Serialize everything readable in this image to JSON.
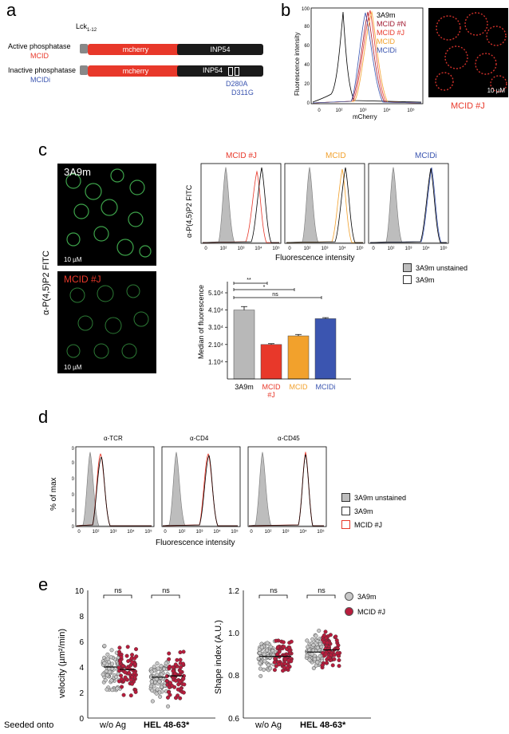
{
  "panels": {
    "a": "a",
    "b": "b",
    "c": "c",
    "d": "d",
    "e": "e"
  },
  "panel_a": {
    "construct_label": "Lck",
    "construct_sub": "1-12",
    "active": {
      "title": "Active phosphatase",
      "name": "MCID",
      "fp": "mcherry",
      "domain": "INP54"
    },
    "inactive": {
      "title": "Inactive phosphatase",
      "name": "MCIDi",
      "fp": "mcherry",
      "domain": "INP54",
      "mut1": "D280A",
      "mut2": "D311G"
    }
  },
  "panel_b": {
    "ylabel": "Fluorescence intensity",
    "xlabel": "mCherry",
    "yticks": [
      "0",
      "20",
      "40",
      "60",
      "80",
      "100"
    ],
    "xticks": [
      "0",
      "10²",
      "10³",
      "10⁴",
      "10⁵"
    ],
    "legend": [
      {
        "name": "3A9m",
        "color": "#000000"
      },
      {
        "name": "MCID #N",
        "color": "#a0182f"
      },
      {
        "name": "MCID #J",
        "color": "#e8382a"
      },
      {
        "name": "MCID",
        "color": "#f2a12c"
      },
      {
        "name": "MCIDi",
        "color": "#3b55b0"
      }
    ],
    "scale": "10 µM",
    "image_label": "MCID #J"
  },
  "panel_c": {
    "img1_label": "3A9m",
    "img2_label": "MCID #J",
    "scale": "10 µM",
    "ylabel": "α-P(4,5)P2 FITC",
    "hist_titles": [
      {
        "t": "MCID #J",
        "c": "#e8382a"
      },
      {
        "t": "MCID",
        "c": "#f2a12c"
      },
      {
        "t": "MCIDi",
        "c": "#3b55b0"
      }
    ],
    "hist_ylabel": "α-P(4,5)P2 FITC",
    "hist_xlabel": "Fluorescence intensity",
    "hist_xticks": [
      "0",
      "10²",
      "10³",
      "10⁴",
      "10⁵"
    ],
    "legend": [
      "3A9m unstained",
      "3A9m"
    ],
    "bar_ylabel": "Median of fluorescence",
    "sig": [
      "**",
      "*",
      "ns"
    ]
  },
  "panel_d": {
    "titles": [
      "α-TCR",
      "α-CD4",
      "α-CD45"
    ],
    "ylabel": "% of max",
    "xlabel": "Fluorescence intensity",
    "yticks": [
      "0",
      "20",
      "40",
      "60",
      "80",
      "100"
    ],
    "xticks": [
      "0",
      "10²",
      "10³",
      "10⁴",
      "10⁵"
    ],
    "legend": [
      "3A9m unstained",
      "3A9m",
      "MCID #J"
    ]
  },
  "panel_e": {
    "seeded": "Seeded onto",
    "groups": [
      "w/o Ag",
      "HEL 48-63*"
    ],
    "groups_right": [
      "w/o Ag",
      "HEL 48-63*"
    ],
    "ylabel_left": "velocity (µm²/min)",
    "ylabel_right": "Shape index (A.U.)",
    "yticks_left": [
      "0",
      "2",
      "4",
      "6",
      "8",
      "10"
    ],
    "yticks_right": [
      "0.6",
      "0.8",
      "1.0",
      "1.2"
    ],
    "ns": "ns",
    "legend": [
      "3A9m",
      "MCID #J"
    ]
  },
  "chart_data": [
    {
      "type": "bar",
      "title": "",
      "ylabel": "Median of fluorescence",
      "categories": [
        "3A9m",
        "MCID #J",
        "MCID",
        "MCIDi"
      ],
      "values": [
        40000,
        20000,
        25000,
        35000
      ],
      "errors": [
        2000,
        500,
        800,
        600
      ],
      "colors": [
        "#b8b8b8",
        "#e8382a",
        "#f2a12c",
        "#3b55b0"
      ],
      "ylim": [
        0,
        50000
      ],
      "yticks": [
        "1.10⁴",
        "2.10⁴",
        "3.10⁴",
        "4.10⁴",
        "5.10⁴"
      ],
      "significance": [
        {
          "pair": [
            "3A9m",
            "MCID #J"
          ],
          "label": "**"
        },
        {
          "pair": [
            "3A9m",
            "MCID"
          ],
          "label": "*"
        },
        {
          "pair": [
            "3A9m",
            "MCIDi"
          ],
          "label": "ns"
        }
      ]
    },
    {
      "type": "scatter",
      "ylabel": "velocity (µm²/min)",
      "ylim": [
        0,
        10
      ],
      "groups": [
        "w/o Ag",
        "HEL 48-63*"
      ],
      "series": [
        {
          "name": "3A9m",
          "color": "#c8c8c8"
        },
        {
          "name": "MCID #J",
          "color": "#b81c3c"
        }
      ],
      "medians": [
        4.0,
        3.8,
        3.2,
        3.3
      ]
    },
    {
      "type": "scatter",
      "ylabel": "Shape index (A.U.)",
      "ylim": [
        0.6,
        1.2
      ],
      "groups": [
        "w/o Ag",
        "HEL 48-63*"
      ],
      "series": [
        {
          "name": "3A9m",
          "color": "#c8c8c8"
        },
        {
          "name": "MCID #J",
          "color": "#b81c3c"
        }
      ],
      "medians": [
        0.89,
        0.89,
        0.91,
        0.92
      ]
    }
  ]
}
